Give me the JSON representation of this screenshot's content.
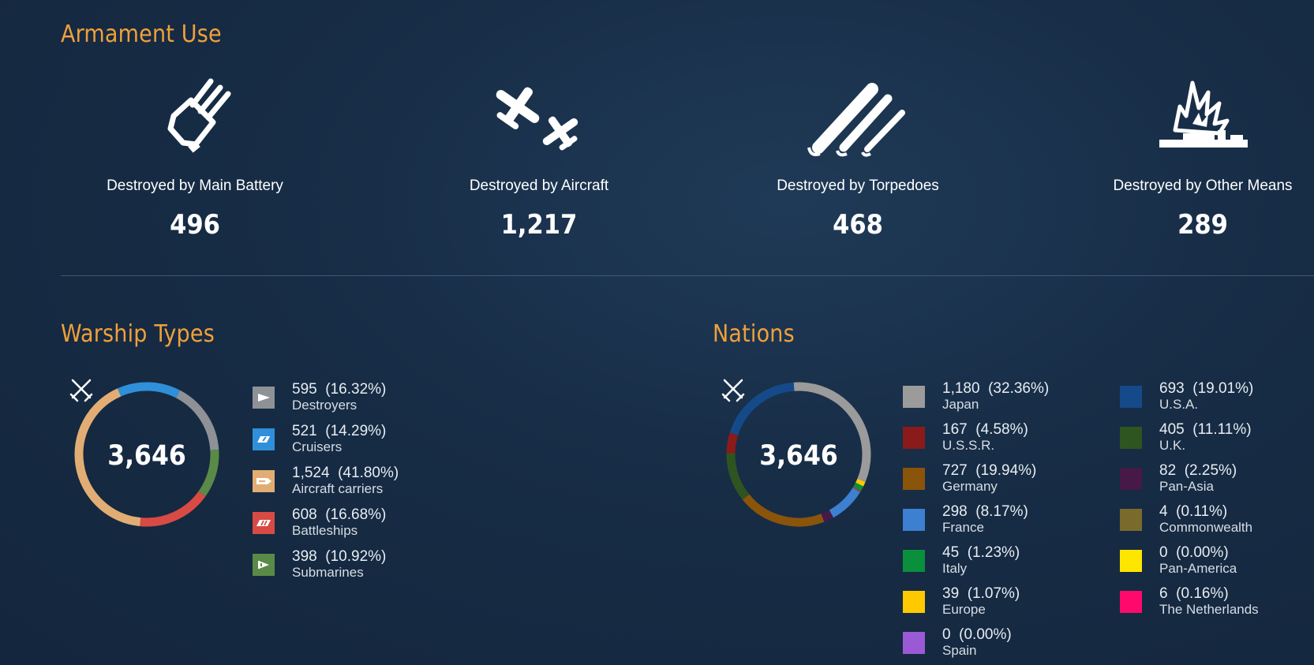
{
  "armament": {
    "title": "Armament Use",
    "items": [
      {
        "label": "Destroyed by Main Battery",
        "value": "496",
        "icon": "main-battery-icon"
      },
      {
        "label": "Destroyed by Aircraft",
        "value": "1,217",
        "icon": "aircraft-icon"
      },
      {
        "label": "Destroyed by Torpedoes",
        "value": "468",
        "icon": "torpedoes-icon"
      },
      {
        "label": "Destroyed by Other Means",
        "value": "289",
        "icon": "explosion-ship-icon"
      }
    ]
  },
  "warship_types": {
    "title": "Warship Types",
    "total": "3,646",
    "items": [
      {
        "value": "595",
        "pct": "(16.32%)",
        "label": "Destroyers",
        "color": "#8e9196",
        "icon": "destroyer-icon"
      },
      {
        "value": "521",
        "pct": "(14.29%)",
        "label": "Cruisers",
        "color": "#2f8fd9",
        "icon": "cruiser-icon"
      },
      {
        "value": "1,524",
        "pct": "(41.80%)",
        "label": "Aircraft carriers",
        "color": "#e2ad74",
        "icon": "aircraft-carrier-icon"
      },
      {
        "value": "608",
        "pct": "(16.68%)",
        "label": "Battleships",
        "color": "#d84a44",
        "icon": "battleship-icon"
      },
      {
        "value": "398",
        "pct": "(10.92%)",
        "label": "Submarines",
        "color": "#5a8a48",
        "icon": "submarine-icon"
      }
    ]
  },
  "nations": {
    "title": "Nations",
    "total": "3,646",
    "items": [
      {
        "value": "1,180",
        "pct": "(32.36%)",
        "label": "Japan",
        "color": "#9b9b9b"
      },
      {
        "value": "167",
        "pct": "(4.58%)",
        "label": "U.S.S.R.",
        "color": "#8b1a1a"
      },
      {
        "value": "727",
        "pct": "(19.94%)",
        "label": "Germany",
        "color": "#8a540b"
      },
      {
        "value": "298",
        "pct": "(8.17%)",
        "label": "France",
        "color": "#3d7fd0"
      },
      {
        "value": "45",
        "pct": "(1.23%)",
        "label": "Italy",
        "color": "#0a8f3c"
      },
      {
        "value": "39",
        "pct": "(1.07%)",
        "label": "Europe",
        "color": "#ffc900"
      },
      {
        "value": "0",
        "pct": "(0.00%)",
        "label": "Spain",
        "color": "#9a5ad6"
      },
      {
        "value": "693",
        "pct": "(19.01%)",
        "label": "U.S.A.",
        "color": "#154a8a"
      },
      {
        "value": "405",
        "pct": "(11.11%)",
        "label": "U.K.",
        "color": "#2e5520"
      },
      {
        "value": "82",
        "pct": "(2.25%)",
        "label": "Pan-Asia",
        "color": "#461947"
      },
      {
        "value": "4",
        "pct": "(0.11%)",
        "label": "Commonwealth",
        "color": "#7a6a2c"
      },
      {
        "value": "0",
        "pct": "(0.00%)",
        "label": "Pan-America",
        "color": "#ffe600"
      },
      {
        "value": "6",
        "pct": "(0.16%)",
        "label": "The Netherlands",
        "color": "#ff0a6c"
      }
    ]
  }
}
